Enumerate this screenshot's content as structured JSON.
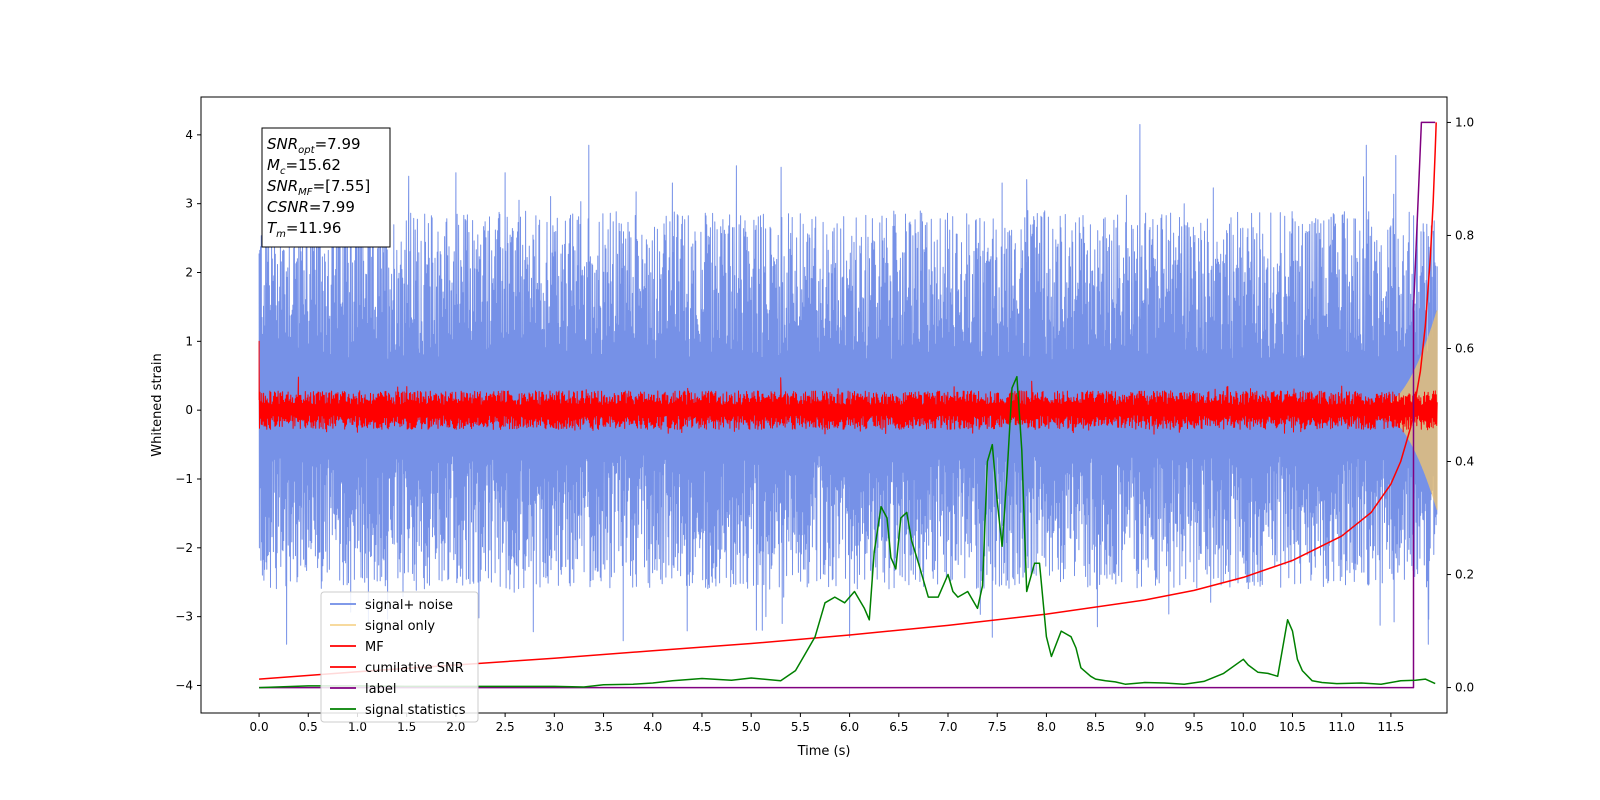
{
  "chart_data": {
    "type": "line",
    "xlabel": "Time (s)",
    "ylabel_left": "Whitened strain",
    "xlim": [
      -0.59,
      12.07
    ],
    "ylim_left": [
      -4.4,
      4.55
    ],
    "ylim_right": [
      -0.045,
      1.045
    ],
    "x_ticks": [
      0.0,
      0.5,
      1.0,
      1.5,
      2.0,
      2.5,
      3.0,
      3.5,
      4.0,
      4.5,
      5.0,
      5.5,
      6.0,
      6.5,
      7.0,
      7.5,
      8.0,
      8.5,
      9.0,
      9.5,
      10.0,
      10.5,
      11.0,
      11.5
    ],
    "x_tick_labels": [
      "0.0",
      "0.5",
      "1.0",
      "1.5",
      "2.0",
      "2.5",
      "3.0",
      "3.5",
      "4.0",
      "4.5",
      "5.0",
      "5.5",
      "6.0",
      "6.5",
      "7.0",
      "7.5",
      "8.0",
      "8.5",
      "9.0",
      "9.5",
      "10.0",
      "10.5",
      "11.0",
      "11.5"
    ],
    "y_left_ticks": [
      -4,
      -3,
      -2,
      -1,
      0,
      1,
      2,
      3,
      4
    ],
    "y_left_tick_labels": [
      "−4",
      "−3",
      "−2",
      "−1",
      "0",
      "1",
      "2",
      "3",
      "4"
    ],
    "y_right_ticks": [
      0.0,
      0.2,
      0.4,
      0.6,
      0.8,
      1.0
    ],
    "y_right_tick_labels": [
      "0.0",
      "0.2",
      "0.4",
      "0.6",
      "0.8",
      "1.0"
    ],
    "grid": false,
    "legend_position": "bottom-left",
    "series": [
      {
        "name": "signal+ noise",
        "axis": "left",
        "color": "#6f8be6",
        "style": "noise",
        "x_range": [
          0.0,
          11.97
        ],
        "envelope_upper": 2.9,
        "envelope_lower": -2.6,
        "extreme_peaks": [
          [
            0.08,
            2.6
          ],
          [
            0.28,
            -3.4
          ],
          [
            1.52,
            3.4
          ],
          [
            2.0,
            3.45
          ],
          [
            2.5,
            3.45
          ],
          [
            3.35,
            3.85
          ],
          [
            3.7,
            -3.35
          ],
          [
            4.2,
            3.3
          ],
          [
            4.85,
            3.55
          ],
          [
            5.15,
            -3.0
          ],
          [
            6.0,
            -3.3
          ],
          [
            7.45,
            -3.3
          ],
          [
            7.55,
            3.3
          ],
          [
            7.8,
            3.35
          ],
          [
            8.95,
            4.15
          ],
          [
            9.4,
            3.0
          ],
          [
            11.25,
            3.85
          ],
          [
            11.55,
            3.7
          ],
          [
            11.88,
            -3.4
          ],
          [
            11.93,
            2.6
          ]
        ]
      },
      {
        "name": "signal only",
        "axis": "left",
        "color": "#f3c66b",
        "style": "chirp",
        "x_range": [
          11.3,
          11.97
        ],
        "peak_amplitude": 1.45
      },
      {
        "name": "MF",
        "axis": "left",
        "color": "#ff0000",
        "style": "noise",
        "x_range": [
          0.0,
          11.97
        ],
        "envelope_upper": 0.28,
        "envelope_lower": -0.28,
        "extreme_peaks": [
          [
            0.0,
            1.0
          ],
          [
            0.0,
            0.75
          ],
          [
            0.4,
            0.48
          ],
          [
            5.3,
            0.47
          ],
          [
            7.85,
            0.42
          ],
          [
            11.0,
            0.35
          ]
        ]
      },
      {
        "name": "cumilative SNR",
        "axis": "right",
        "color": "#ff0000",
        "style": "line",
        "x": [
          0.0,
          1.0,
          2.0,
          3.0,
          4.0,
          5.0,
          6.0,
          7.0,
          8.0,
          9.0,
          9.5,
          10.0,
          10.5,
          11.0,
          11.3,
          11.5,
          11.6,
          11.7,
          11.8,
          11.85,
          11.9,
          11.93,
          11.95,
          11.96
        ],
        "y": [
          0.015,
          0.028,
          0.04,
          0.052,
          0.065,
          0.078,
          0.093,
          0.11,
          0.13,
          0.155,
          0.172,
          0.195,
          0.225,
          0.268,
          0.31,
          0.36,
          0.4,
          0.46,
          0.56,
          0.64,
          0.76,
          0.86,
          0.95,
          1.0
        ]
      },
      {
        "name": "label",
        "axis": "right",
        "color": "#800080",
        "style": "step",
        "x": [
          0.0,
          11.73,
          11.73,
          11.81,
          11.81,
          11.95
        ],
        "y": [
          0.0,
          0.0,
          0.67,
          1.0,
          1.0,
          1.0
        ]
      },
      {
        "name": "signal statistics",
        "axis": "right",
        "color": "#008000",
        "style": "line",
        "x": [
          0.0,
          0.5,
          1.0,
          1.5,
          2.0,
          2.5,
          3.0,
          3.3,
          3.5,
          3.8,
          4.0,
          4.2,
          4.5,
          4.8,
          5.0,
          5.3,
          5.45,
          5.55,
          5.65,
          5.75,
          5.85,
          5.95,
          6.05,
          6.15,
          6.2,
          6.25,
          6.32,
          6.38,
          6.42,
          6.47,
          6.52,
          6.58,
          6.63,
          6.7,
          6.8,
          6.9,
          7.0,
          7.05,
          7.1,
          7.2,
          7.3,
          7.35,
          7.4,
          7.45,
          7.5,
          7.55,
          7.6,
          7.65,
          7.7,
          7.75,
          7.8,
          7.88,
          7.93,
          8.0,
          8.05,
          8.15,
          8.25,
          8.3,
          8.35,
          8.45,
          8.5,
          8.6,
          8.7,
          8.8,
          9.0,
          9.2,
          9.4,
          9.6,
          9.8,
          10.0,
          10.05,
          10.15,
          10.25,
          10.35,
          10.45,
          10.5,
          10.55,
          10.6,
          10.7,
          10.8,
          10.95,
          11.2,
          11.4,
          11.6,
          11.75,
          11.85,
          11.95
        ],
        "y": [
          0.0,
          0.003,
          0.003,
          0.002,
          0.002,
          0.002,
          0.002,
          0.001,
          0.005,
          0.006,
          0.008,
          0.012,
          0.016,
          0.013,
          0.017,
          0.012,
          0.03,
          0.06,
          0.09,
          0.15,
          0.16,
          0.15,
          0.17,
          0.14,
          0.12,
          0.24,
          0.32,
          0.3,
          0.23,
          0.21,
          0.3,
          0.31,
          0.26,
          0.22,
          0.16,
          0.16,
          0.2,
          0.17,
          0.16,
          0.17,
          0.14,
          0.18,
          0.4,
          0.43,
          0.33,
          0.25,
          0.38,
          0.53,
          0.55,
          0.42,
          0.17,
          0.22,
          0.22,
          0.09,
          0.055,
          0.1,
          0.09,
          0.07,
          0.035,
          0.02,
          0.015,
          0.012,
          0.01,
          0.006,
          0.009,
          0.008,
          0.006,
          0.011,
          0.025,
          0.05,
          0.04,
          0.027,
          0.025,
          0.02,
          0.12,
          0.1,
          0.05,
          0.03,
          0.012,
          0.009,
          0.007,
          0.008,
          0.006,
          0.012,
          0.013,
          0.015,
          0.007
        ]
      }
    ],
    "annotation": {
      "lines": [
        {
          "sym": "SNR",
          "sub": "opt",
          "value": "=7.99"
        },
        {
          "sym": "M",
          "sub": "c",
          "value": "=15.62"
        },
        {
          "sym": "SNR",
          "sub": "MF",
          "value": "=[7.55]"
        },
        {
          "sym": "CSNR",
          "sub": "",
          "value": "=7.99"
        },
        {
          "sym": "T",
          "sub": "m",
          "value": "=11.96"
        }
      ]
    }
  }
}
